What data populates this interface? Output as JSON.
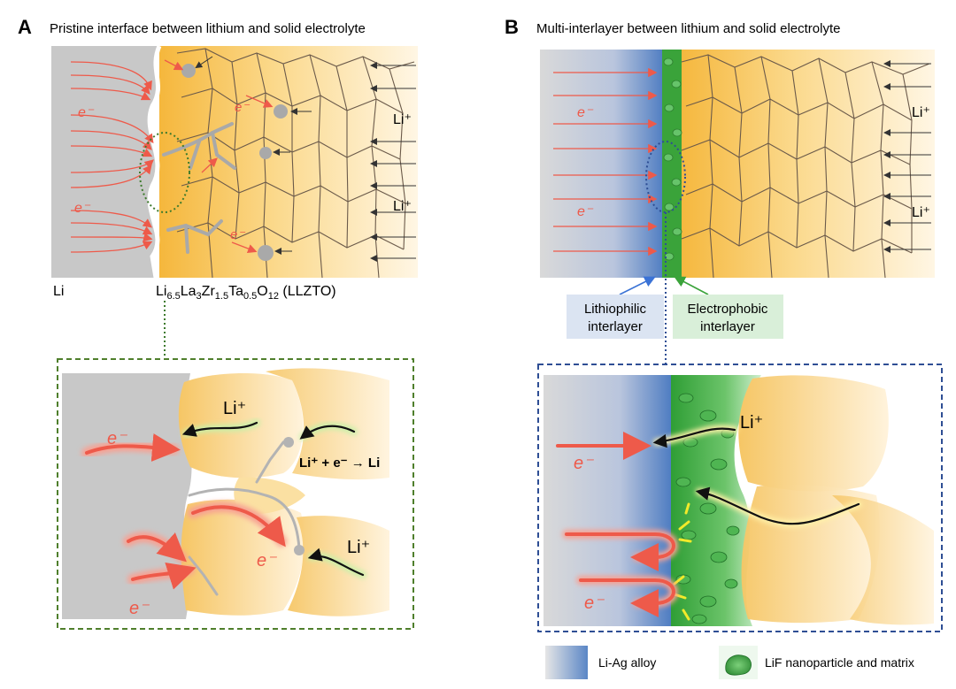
{
  "panel_a": {
    "letter": "A",
    "title": "Pristine interface between lithium and solid electrolyte",
    "label_li": "Li",
    "label_llzto": "Li6.5La3Zr1.5Ta0.5O12 (LLZTO)",
    "formula_parts": [
      "Li",
      "6.5",
      "La",
      "3",
      "Zr",
      "1.5",
      "Ta",
      "0.5",
      "O",
      "12",
      " (LLZTO)"
    ],
    "ion_top": "Li⁺",
    "ion_bottom": "Li⁺",
    "electron": "e⁻",
    "detail": {
      "ion_1": "Li⁺",
      "ion_2": "Li⁺",
      "reaction": "Li⁺ + e⁻ → Li",
      "electron": "e⁻"
    }
  },
  "panel_b": {
    "letter": "B",
    "title": "Multi-interlayer between lithium and solid electrolyte",
    "ion_top": "Li⁺",
    "ion_bottom": "Li⁺",
    "electron": "e⁻",
    "lithiophilic": [
      "Lithiophilic",
      "interlayer"
    ],
    "electrophobic": [
      "Electrophobic",
      "interlayer"
    ],
    "detail": {
      "ion": "Li⁺",
      "electron": "e⁻"
    },
    "legend": {
      "alloy": "Li-Ag alloy",
      "lif": "LiF nanoparticle and matrix"
    }
  },
  "colors": {
    "lithium": "#c8c8c8",
    "electrolyte": "#f7c860",
    "electron_arrow": "#ee5a4a",
    "ion_arrow": "#333333",
    "alloy_blue": "#5a86c6",
    "lif_green": "#3aa33a",
    "box_green": "#4f7f2c",
    "box_blue": "#2e4e94"
  }
}
